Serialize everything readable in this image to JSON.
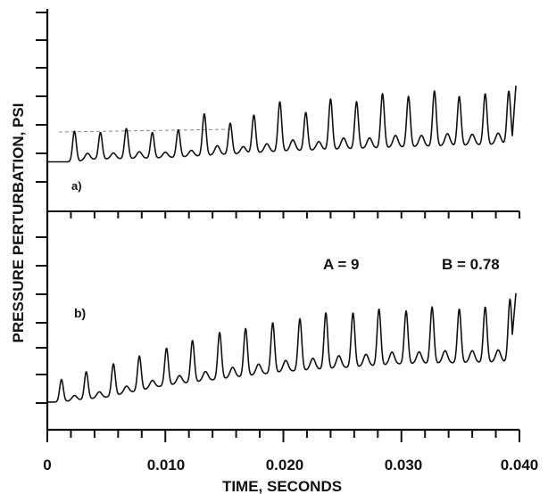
{
  "chart_data": {
    "type": "line",
    "xlabel": "TIME, SECONDS",
    "ylabel": "PRESSURE PERTURBATION, PSI",
    "x_ticks": [
      "0",
      "0.010",
      "0.020",
      "0.030",
      "0.040"
    ],
    "xlim": [
      0,
      0.04
    ],
    "grid": false,
    "panels": [
      {
        "label": "a)",
        "annotations": [],
        "baseline": [
          [
            0.0,
            0.05
          ],
          [
            0.0022,
            0.05
          ],
          [
            0.004,
            0.15
          ],
          [
            0.01,
            0.2
          ],
          [
            0.02,
            0.45
          ],
          [
            0.03,
            0.6
          ],
          [
            0.0394,
            0.72
          ]
        ],
        "peaks": [
          [
            0.0023,
            1.2
          ],
          [
            0.0045,
            1.15
          ],
          [
            0.0067,
            1.3
          ],
          [
            0.0089,
            1.15
          ],
          [
            0.0111,
            1.25
          ],
          [
            0.0133,
            1.85
          ],
          [
            0.0155,
            1.5
          ],
          [
            0.0175,
            1.8
          ],
          [
            0.0197,
            2.3
          ],
          [
            0.0219,
            1.9
          ],
          [
            0.024,
            2.4
          ],
          [
            0.0262,
            2.3
          ],
          [
            0.0284,
            2.6
          ],
          [
            0.0306,
            2.5
          ],
          [
            0.0328,
            2.7
          ],
          [
            0.0349,
            2.5
          ],
          [
            0.0371,
            2.6
          ],
          [
            0.0391,
            2.7
          ]
        ],
        "end_value": 2.9
      },
      {
        "label": "b)",
        "annotations": [
          "A = 9",
          "B = 0.78"
        ],
        "baseline": [
          [
            0.0,
            0.05
          ],
          [
            0.001,
            0.05
          ],
          [
            0.005,
            0.3
          ],
          [
            0.01,
            0.9
          ],
          [
            0.02,
            1.6
          ],
          [
            0.03,
            2.0
          ],
          [
            0.0394,
            2.1
          ]
        ],
        "peaks": [
          [
            0.0012,
            1.2
          ],
          [
            0.0033,
            1.6
          ],
          [
            0.0056,
            2.0
          ],
          [
            0.0078,
            2.4
          ],
          [
            0.0101,
            2.8
          ],
          [
            0.0123,
            3.2
          ],
          [
            0.0146,
            3.6
          ],
          [
            0.0168,
            3.8
          ],
          [
            0.0191,
            4.1
          ],
          [
            0.0214,
            4.3
          ],
          [
            0.0236,
            4.6
          ],
          [
            0.0259,
            4.6
          ],
          [
            0.0281,
            4.8
          ],
          [
            0.0304,
            4.7
          ],
          [
            0.0326,
            4.9
          ],
          [
            0.0349,
            4.8
          ],
          [
            0.0371,
            4.9
          ],
          [
            0.0392,
            5.3
          ]
        ],
        "end_value": 5.6
      }
    ]
  }
}
